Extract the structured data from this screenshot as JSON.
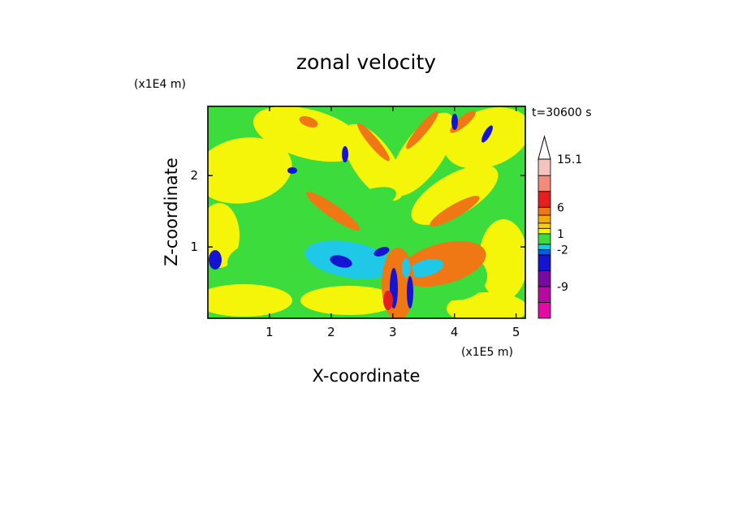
{
  "chart_data": {
    "type": "heatmap",
    "title": "zonal velocity",
    "xlabel": "X-coordinate",
    "ylabel": "Z-coordinate",
    "x_unit": "(x1E5 m)",
    "y_unit": "(x1E4 m)",
    "time_label": "t=30600 s",
    "xlim": [
      0,
      5.15
    ],
    "ylim": [
      0,
      2.97
    ],
    "x_ticks": [
      "1",
      "2",
      "3",
      "4",
      "5"
    ],
    "y_ticks": [
      "1",
      "2"
    ],
    "x_tick_values": [
      1,
      2,
      3,
      4,
      5
    ],
    "y_tick_values": [
      1,
      2
    ],
    "colorbar": {
      "labels": [
        "15.1",
        "6",
        "1",
        "-2",
        "-9"
      ],
      "label_values": [
        15.1,
        6,
        1,
        -2,
        -9
      ],
      "levels": [
        -15,
        -12,
        -9,
        -6,
        -3,
        -2,
        -1,
        1,
        2,
        3,
        4.5,
        6,
        9,
        12,
        15.1
      ],
      "colors": [
        "#e60aa5",
        "#b40aa0",
        "#780aa0",
        "#1414d2",
        "#0a5ae1",
        "#1ec8e6",
        "#3cdc3c",
        "#f5f50a",
        "#f5d20a",
        "#f5aa0a",
        "#f07814",
        "#e61e1e",
        "#f08c78",
        "#f5c3be"
      ]
    },
    "colors": {
      "background": "#3cdc3c",
      "positive": "#f5f50a",
      "jet": "#f07814",
      "negative": "#1ec8e6",
      "strong_negative": "#1414d2"
    }
  }
}
